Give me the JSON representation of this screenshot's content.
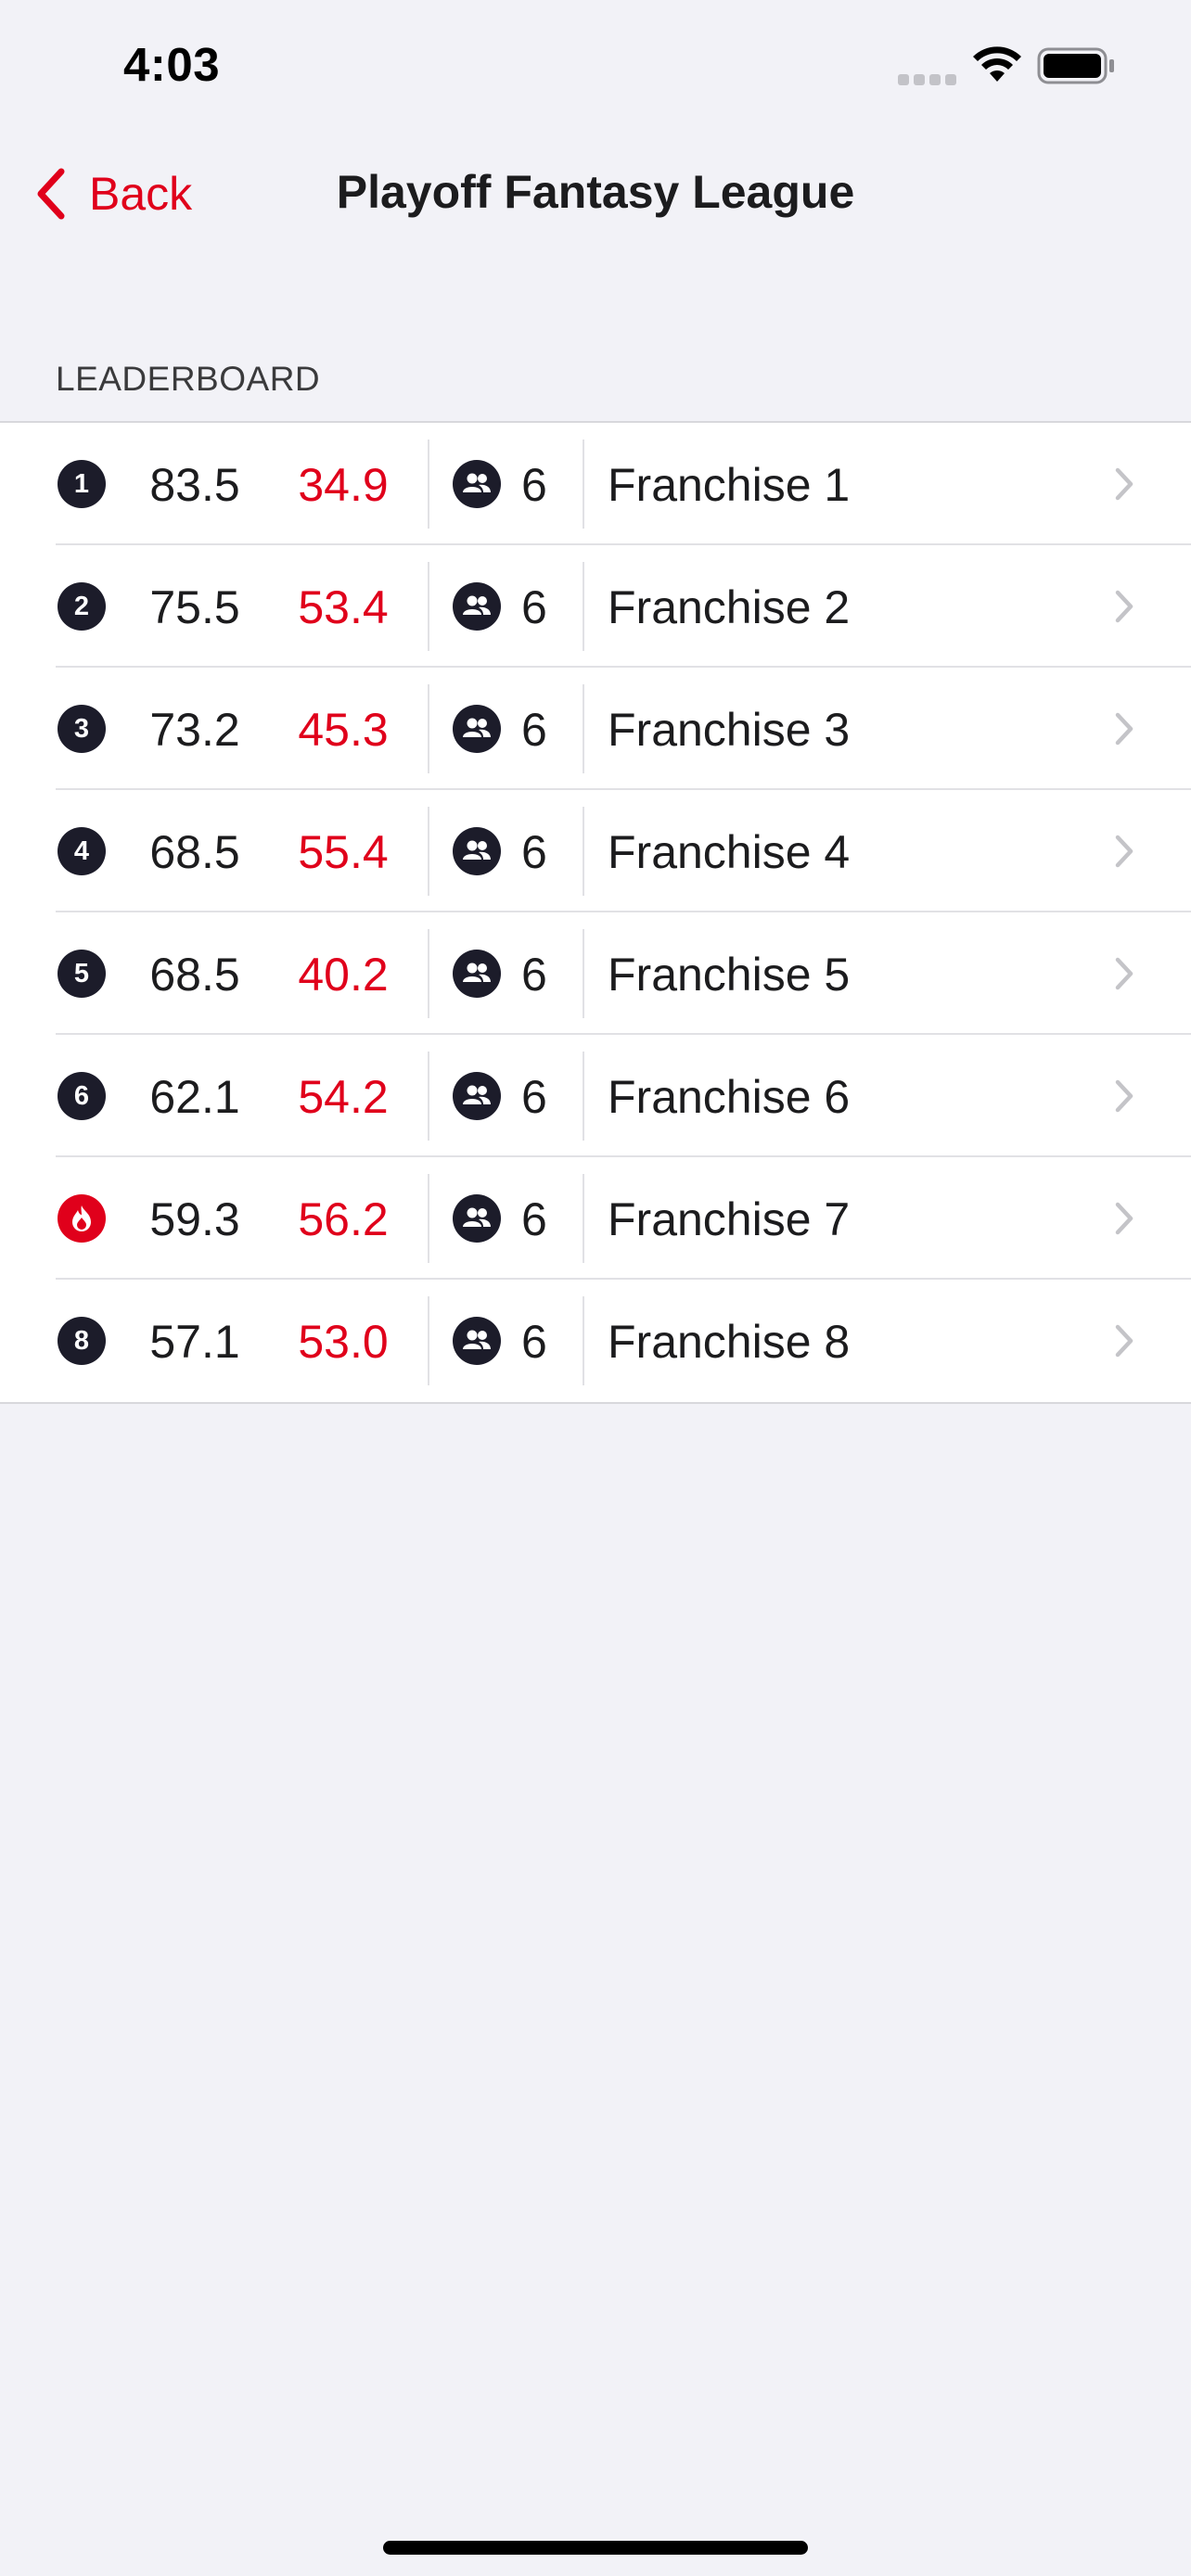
{
  "status_bar": {
    "time": "4:03"
  },
  "nav": {
    "back_label": "Back",
    "title": "Playoff Fantasy League"
  },
  "section": {
    "title": "LEADERBOARD"
  },
  "colors": {
    "accent": "#E0001B",
    "badge": "#1C1C2A",
    "background": "#F2F2F7"
  },
  "leaderboard": [
    {
      "rank": "1",
      "icon": "number-badge",
      "score": "83.5",
      "projected": "34.9",
      "members": "6",
      "name": "Franchise 1"
    },
    {
      "rank": "2",
      "icon": "number-badge",
      "score": "75.5",
      "projected": "53.4",
      "members": "6",
      "name": "Franchise 2"
    },
    {
      "rank": "3",
      "icon": "number-badge",
      "score": "73.2",
      "projected": "45.3",
      "members": "6",
      "name": "Franchise 3"
    },
    {
      "rank": "4",
      "icon": "number-badge",
      "score": "68.5",
      "projected": "55.4",
      "members": "6",
      "name": "Franchise 4"
    },
    {
      "rank": "5",
      "icon": "number-badge",
      "score": "68.5",
      "projected": "40.2",
      "members": "6",
      "name": "Franchise 5"
    },
    {
      "rank": "6",
      "icon": "number-badge",
      "score": "62.1",
      "projected": "54.2",
      "members": "6",
      "name": "Franchise 6"
    },
    {
      "rank": "",
      "icon": "flame-icon",
      "score": "59.3",
      "projected": "56.2",
      "members": "6",
      "name": "Franchise 7"
    },
    {
      "rank": "8",
      "icon": "number-badge",
      "score": "57.1",
      "projected": "53.0",
      "members": "6",
      "name": "Franchise 8"
    }
  ]
}
